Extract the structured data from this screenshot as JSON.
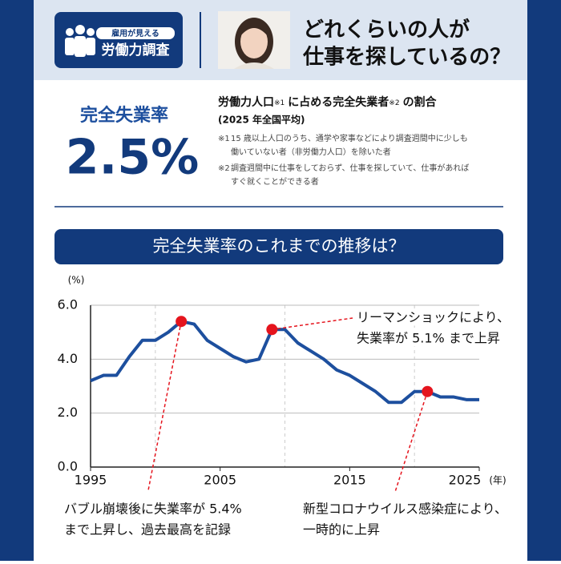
{
  "header": {
    "logo_small": "雇用が見える",
    "logo_main": "労働力調査",
    "title_lines": [
      "どれくらいの人が",
      "仕事を探しているの？"
    ]
  },
  "stat": {
    "label": "完全失業率",
    "value": "2.5%",
    "definition": [
      "労働力人口",
      "※1",
      "に占める完全失業者",
      "※2",
      "の割合"
    ],
    "period": "(2025 年全国平均)",
    "notes": [
      [
        "※1",
        "15 歳以上人口のうち、通学や家事などにより調査週間中に少しも",
        "働いていない者（非労働力人口）を除いた者"
      ],
      [
        "※2",
        "調査週間中に仕事をしておらず、仕事を探していて、仕事があれば",
        "すぐ就くことができる者"
      ]
    ]
  },
  "section_title": "完全失業率のこれまでの推移は？",
  "chart_data": {
    "type": "line",
    "y_label": "(%)",
    "x_label": "(年)",
    "x": [
      1995,
      1996,
      1997,
      1998,
      1999,
      2000,
      2001,
      2002,
      2003,
      2004,
      2005,
      2006,
      2007,
      2008,
      2009,
      2010,
      2011,
      2012,
      2013,
      2014,
      2015,
      2016,
      2017,
      2018,
      2019,
      2020,
      2021,
      2022,
      2023,
      2024,
      2025
    ],
    "series": [
      {
        "name": "完全失業率",
        "color": "#1d4f9e",
        "values": [
          3.2,
          3.4,
          3.4,
          4.1,
          4.7,
          4.7,
          5.0,
          5.4,
          5.3,
          4.7,
          4.4,
          4.1,
          3.9,
          4.0,
          5.1,
          5.1,
          4.6,
          4.3,
          4.0,
          3.6,
          3.4,
          3.1,
          2.8,
          2.4,
          2.4,
          2.8,
          2.8,
          2.6,
          2.6,
          2.5,
          2.5
        ]
      }
    ],
    "xlim": [
      1995,
      2025
    ],
    "xticks": [
      1995,
      2005,
      2015,
      2025
    ],
    "xgrid": [
      2000,
      2010,
      2020
    ],
    "ylim": [
      0,
      6
    ],
    "yticks": [
      {
        "value": 0,
        "label": "0.0"
      },
      {
        "value": 2,
        "label": "2.0"
      },
      {
        "value": 4,
        "label": "4.0"
      },
      {
        "value": 6,
        "label": "6.0"
      }
    ],
    "grid": true,
    "highlight_color": "#e5141d",
    "annotations": [
      {
        "x": 2002,
        "lines": [
          "バブル崩壊後に失業率が 5.4%",
          "まで上昇し、過去最高を記録"
        ]
      },
      {
        "x": 2009,
        "lines": [
          "リーマンショックにより、",
          "失業率が 5.1% まで上昇"
        ]
      },
      {
        "x": 2021,
        "lines": [
          "新型コロナウイルス感染症により、",
          "一時的に上昇"
        ]
      }
    ]
  }
}
